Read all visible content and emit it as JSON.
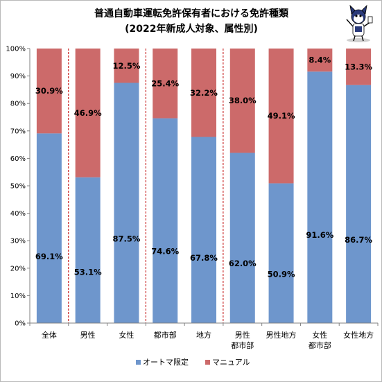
{
  "chart_data": {
    "type": "bar",
    "stacked": true,
    "title": "普通自動車運転免許保有者における免許種類",
    "subtitle": "(2022年新成人対象、属性別)",
    "categories": [
      [
        "全体"
      ],
      [
        "男性"
      ],
      [
        "女性"
      ],
      [
        "都市部"
      ],
      [
        "地方"
      ],
      [
        "男性",
        "都市部"
      ],
      [
        "男性地方"
      ],
      [
        "女性",
        "都市部"
      ],
      [
        "女性地方"
      ]
    ],
    "series": [
      {
        "name": "オートマ限定",
        "color": "#6e96cc",
        "values": [
          69.1,
          53.1,
          87.5,
          74.6,
          67.8,
          62.0,
          50.9,
          91.6,
          86.7
        ],
        "labels": [
          "69.1%",
          "53.1%",
          "87.5%",
          "74.6%",
          "67.8%",
          "62.0%",
          "50.9%",
          "91.6%",
          "86.7%"
        ]
      },
      {
        "name": "マニュアル",
        "color": "#cc6a6a",
        "values": [
          30.9,
          46.9,
          12.5,
          25.4,
          32.2,
          38.0,
          49.1,
          8.4,
          13.3
        ],
        "labels": [
          "30.9%",
          "46.9%",
          "12.5%",
          "25.4%",
          "32.2%",
          "38.0%",
          "49.1%",
          "8.4%",
          "13.3%"
        ]
      }
    ],
    "yticks": [
      "0%",
      "10%",
      "20%",
      "30%",
      "40%",
      "50%",
      "60%",
      "70%",
      "80%",
      "90%",
      "100%"
    ],
    "ylim": [
      0,
      100
    ],
    "group_separators_after": [
      0,
      2,
      4
    ],
    "grid": false,
    "legend": "bottom"
  }
}
